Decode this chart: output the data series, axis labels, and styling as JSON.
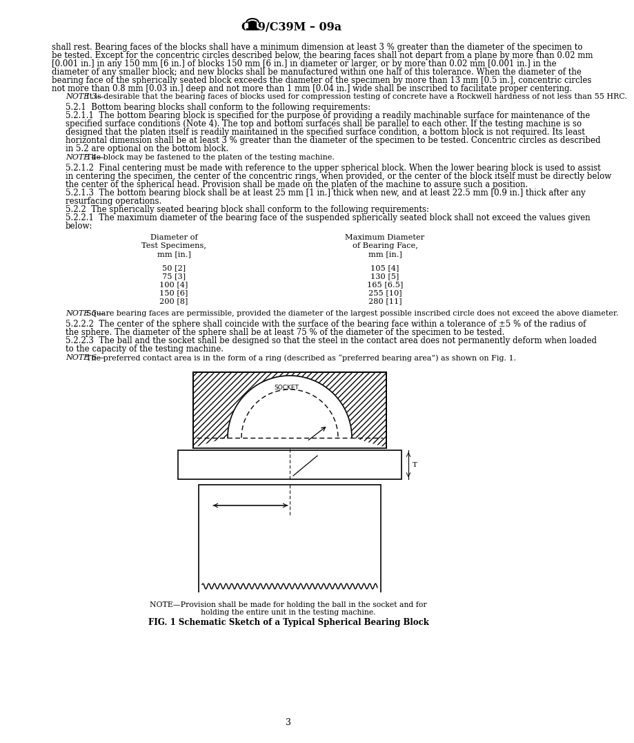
{
  "header": "C39/C39M – 09a",
  "body_lines": [
    "shall rest. Bearing faces of the blocks shall have a minimum dimension at least 3 % greater than the diameter of the specimen to",
    "be tested. Except for the concentric circles described below, the bearing faces shall not depart from a plane by more than 0.02 mm",
    "[0.001 in.] in any 150 mm [6 in.] of blocks 150 mm [6 in.] in diameter or larger, or by more than 0.02 mm [0.001 in.] in the",
    "diameter of any smaller block; and new blocks shall be manufactured within one half of this tolerance. When the diameter of the",
    "bearing face of the spherically seated block exceeds the diameter of the specimen by more than 13 mm [0.5 in.], concentric circles",
    "not more than 0.8 mm [0.03 in.] deep and not more than 1 mm [0.04 in.] wide shall be inscribed to facilitate proper centering."
  ],
  "note3_label": "NOTE 3—",
  "note3_body": "It is desirable that the bearing faces of blocks used for compression testing of concrete have a Rockwell hardness of not less than 55 HRC.",
  "sec521": "5.2.1  Bottom bearing blocks shall conform to the following requirements:",
  "sec5211_lines": [
    "5.2.1.1  The bottom bearing block is specified for the purpose of providing a readily machinable surface for maintenance of the",
    "specified surface conditions (Note 4). The top and bottom surfaces shall be parallel to each other. If the testing machine is so",
    "designed that the platen itself is readily maintained in the specified surface condition, a bottom block is not required. Its least",
    "horizontal dimension shall be at least 3 % greater than the diameter of the specimen to be tested. Concentric circles as described",
    "in 5.2 are optional on the bottom block."
  ],
  "note4_label": "NOTE 4—",
  "note4_body": "The block may be fastened to the platen of the testing machine.",
  "sec5212_lines": [
    "5.2.1.2  Final centering must be made with reference to the upper spherical block. When the lower bearing block is used to assist",
    "in centering the specimen, the center of the concentric rings, when provided, or the center of the block itself must be directly below",
    "the center of the spherical head. Provision shall be made on the platen of the machine to assure such a position."
  ],
  "sec5213_lines": [
    "5.2.1.3  The bottom bearing block shall be at least 25 mm [1 in.] thick when new, and at least 22.5 mm [0.9 in.] thick after any",
    "resurfacing operations."
  ],
  "sec522": "5.2.2  The spherically seated bearing block shall conform to the following requirements:",
  "sec5221_lines": [
    "5.2.2.1  The maximum diameter of the bearing face of the suspended spherically seated block shall not exceed the values given",
    "below:"
  ],
  "table_col1_header": [
    "Diameter of",
    "Test Specimens,",
    "mm [in.]"
  ],
  "table_col2_header": [
    "Maximum Diameter",
    "of Bearing Face,",
    "mm [in.]"
  ],
  "table_col1_data": [
    "50 [2]",
    "75 [3]",
    "100 [4]",
    "150 [6]",
    "200 [8]"
  ],
  "table_col2_data": [
    "105 [4]",
    "130 [5]",
    "165 [6.5]",
    "255 [10]",
    "280 [11]"
  ],
  "note5_label": "NOTE 5—",
  "note5_body": "Square bearing faces are permissible, provided the diameter of the largest possible inscribed circle does not exceed the above diameter.",
  "sec5222_lines": [
    "5.2.2.2  The center of the sphere shall coincide with the surface of the bearing face within a tolerance of ±5 % of the radius of",
    "the sphere. The diameter of the sphere shall be at least 75 % of the diameter of the specimen to be tested."
  ],
  "sec5223_lines": [
    "5.2.2.3  The ball and the socket shall be designed so that the steel in the contact area does not permanently deform when loaded",
    "to the capacity of the testing machine."
  ],
  "note6_label": "NOTE 6—",
  "note6_body": "The preferred contact area is in the form of a ring (described as “preferred bearing area”) as shown on Fig. 1.",
  "fig_note_line1": "NOTE—Provision shall be made for holding the ball in the socket and for",
  "fig_note_line2": "holding the entire unit in the testing machine.",
  "fig_title": "FIG. 1 Schematic Sketch of a Typical Spherical Bearing Block",
  "page_number": "3",
  "lm": 65,
  "rm": 751,
  "fs_body": 8.5,
  "fs_note": 8.0,
  "fs_hdr": 11.5,
  "lh": 12.0
}
